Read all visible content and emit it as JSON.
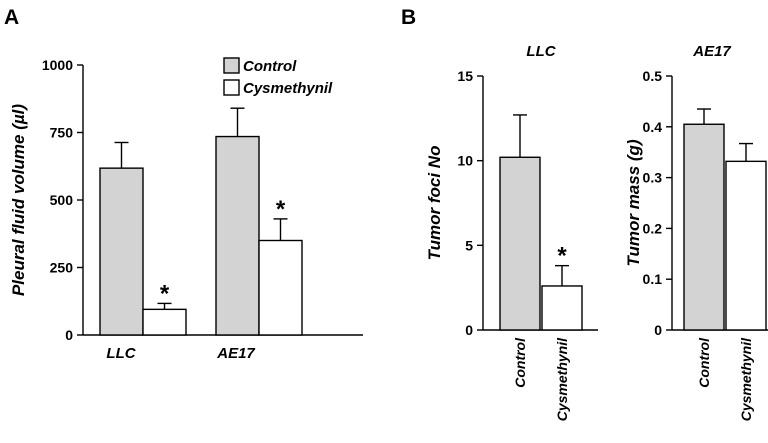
{
  "colors": {
    "control": "#d3d3d3",
    "cysmethynil": "#ffffff"
  },
  "chart_data": [
    {
      "type": "bar",
      "panel": "A",
      "ylabel": "Pleural fluid volume (µl)",
      "ylim": [
        0,
        1000
      ],
      "yticks": [
        0,
        250,
        500,
        750,
        1000
      ],
      "yticklabels": [
        "0",
        "250",
        "500",
        "750",
        "1000"
      ],
      "categories": [
        "LLC",
        "AE17"
      ],
      "legend": {
        "placement": "top-center",
        "entries": [
          "Control",
          "Cysmethynil"
        ]
      },
      "series": [
        {
          "name": "Control",
          "values": [
            618,
            735
          ],
          "errors": [
            95,
            105
          ],
          "marks": [
            "",
            ""
          ]
        },
        {
          "name": "Cysmethynil",
          "values": [
            95,
            350
          ],
          "errors": [
            22,
            80
          ],
          "marks": [
            "*",
            "*"
          ]
        }
      ]
    },
    {
      "type": "bar",
      "panel": "B",
      "title": "LLC",
      "ylabel": "Tumor foci No",
      "ylim": [
        0,
        15
      ],
      "yticks": [
        0,
        5,
        10,
        15
      ],
      "yticklabels": [
        "0",
        "5",
        "10",
        "15"
      ],
      "categories": [
        "Control",
        "Cysmethynil"
      ],
      "values": [
        10.2,
        2.6
      ],
      "errors": [
        2.5,
        1.2
      ],
      "marks": [
        "",
        "*"
      ]
    },
    {
      "type": "bar",
      "title": "AE17",
      "ylabel": "Tumor mass (g)",
      "ylim": [
        0,
        0.5
      ],
      "yticks": [
        0,
        0.1,
        0.2,
        0.3,
        0.4,
        0.5
      ],
      "yticklabels": [
        "0",
        "0.1",
        "0.2",
        "0.3",
        "0.4",
        "0.5"
      ],
      "categories": [
        "Control",
        "Cysmethynil"
      ],
      "values": [
        0.405,
        0.332
      ],
      "errors": [
        0.03,
        0.035
      ],
      "marks": [
        "",
        ""
      ]
    }
  ]
}
